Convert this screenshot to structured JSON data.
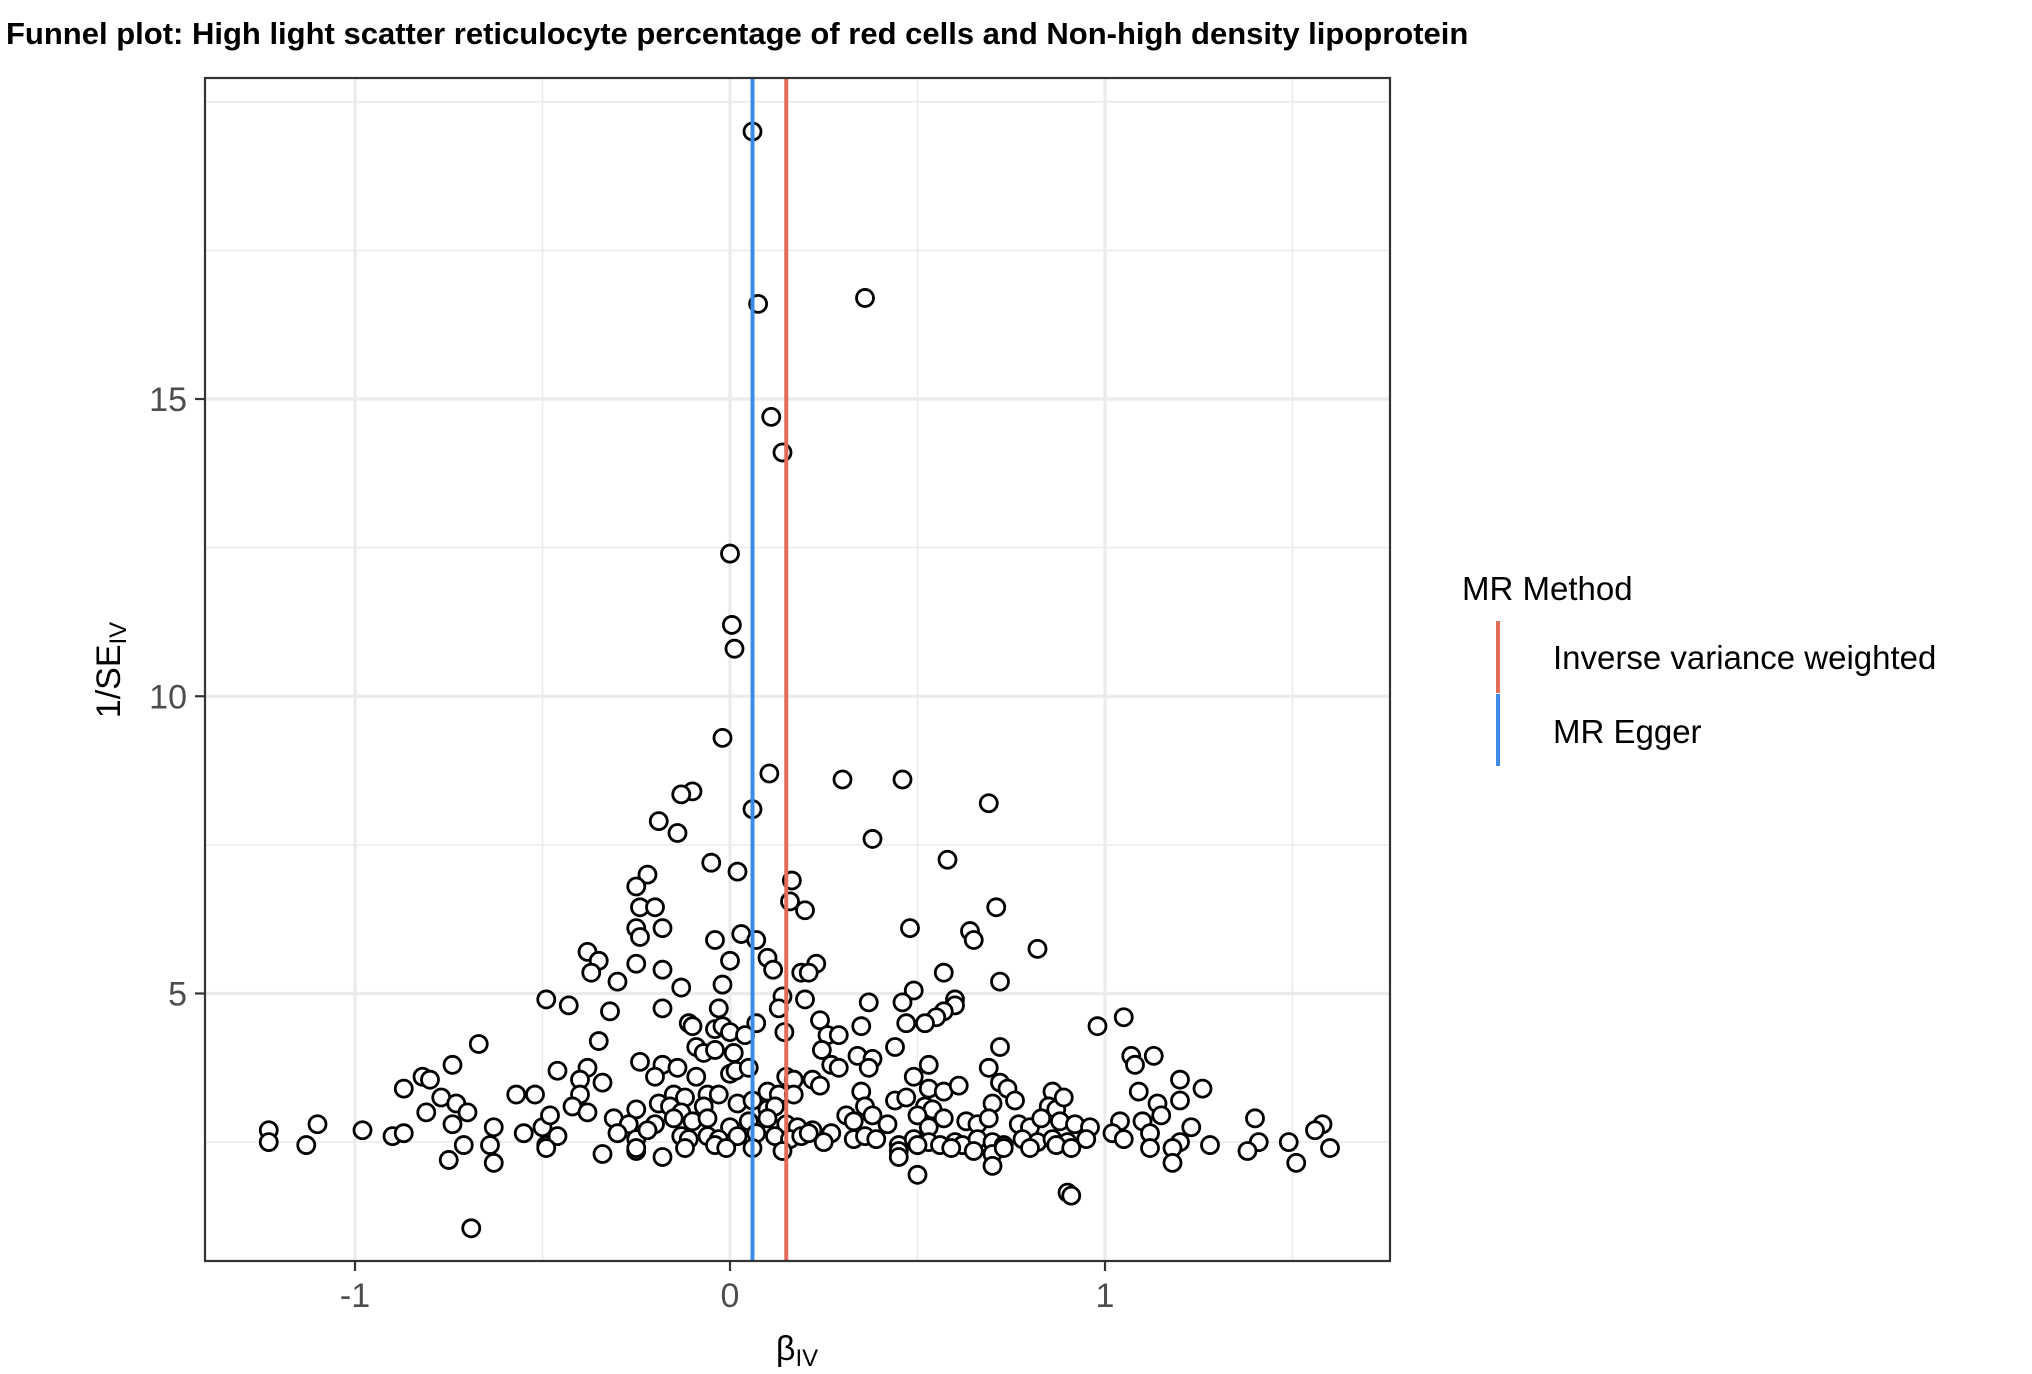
{
  "chart_data": {
    "type": "scatter",
    "title": "Funnel plot: High light scatter reticulocyte percentage of red cells and Non-high density lipoprotein",
    "xlabel": "β",
    "xlabel_sub": "IV",
    "ylabel": "1/SE",
    "ylabel_sub": "IV",
    "xlim": [
      -1.4,
      1.76
    ],
    "ylim": [
      0.5,
      20.4
    ],
    "x_ticks": [
      -1,
      0,
      1
    ],
    "x_tick_labels": [
      "-1",
      "0",
      "1"
    ],
    "y_ticks": [
      5,
      10,
      15
    ],
    "y_tick_labels": [
      "5",
      "10",
      "15"
    ],
    "grid": true,
    "legend": {
      "title": "MR Method",
      "position": "right",
      "entries": [
        {
          "label": "Inverse variance weighted",
          "color": "#E06C5C"
        },
        {
          "label": "MR Egger",
          "color": "#3C8BE6"
        }
      ]
    },
    "lines": [
      {
        "method": "Inverse variance weighted",
        "x": 0.15,
        "color": "#E06C5C"
      },
      {
        "method": "MR Egger",
        "x": 0.06,
        "color": "#3C8BE6"
      }
    ],
    "points": [
      [
        0.06,
        19.5
      ],
      [
        0.36,
        16.7
      ],
      [
        0.075,
        16.6
      ],
      [
        0.11,
        14.7
      ],
      [
        0.14,
        14.1
      ],
      [
        0.0,
        12.4
      ],
      [
        0.005,
        11.2
      ],
      [
        0.012,
        10.8
      ],
      [
        -0.02,
        9.3
      ],
      [
        0.105,
        8.7
      ],
      [
        0.06,
        8.1
      ],
      [
        0.3,
        8.6
      ],
      [
        0.46,
        8.6
      ],
      [
        0.69,
        8.2
      ],
      [
        -0.1,
        8.4
      ],
      [
        -0.13,
        8.35
      ],
      [
        -0.19,
        7.9
      ],
      [
        -0.14,
        7.7
      ],
      [
        0.38,
        7.6
      ],
      [
        0.58,
        7.25
      ],
      [
        -0.05,
        7.2
      ],
      [
        0.02,
        7.05
      ],
      [
        -0.22,
        7.0
      ],
      [
        -0.25,
        6.8
      ],
      [
        0.165,
        6.9
      ],
      [
        0.16,
        6.55
      ],
      [
        0.2,
        6.4
      ],
      [
        0.71,
        6.45
      ],
      [
        -0.24,
        6.45
      ],
      [
        -0.2,
        6.45
      ],
      [
        -0.25,
        6.1
      ],
      [
        -0.24,
        5.95
      ],
      [
        -0.18,
        6.1
      ],
      [
        0.48,
        6.1
      ],
      [
        0.64,
        6.05
      ],
      [
        0.65,
        5.9
      ],
      [
        0.82,
        5.75
      ],
      [
        0.03,
        6.0
      ],
      [
        0.07,
        5.9
      ],
      [
        -0.04,
        5.9
      ],
      [
        -0.38,
        5.7
      ],
      [
        -0.35,
        5.55
      ],
      [
        -0.37,
        5.35
      ],
      [
        0.1,
        5.6
      ],
      [
        0.0,
        5.55
      ],
      [
        0.23,
        5.5
      ],
      [
        0.115,
        5.4
      ],
      [
        0.19,
        5.35
      ],
      [
        0.21,
        5.35
      ],
      [
        -0.25,
        5.5
      ],
      [
        -0.18,
        5.4
      ],
      [
        -0.3,
        5.2
      ],
      [
        0.57,
        5.35
      ],
      [
        0.72,
        5.2
      ],
      [
        -0.02,
        5.15
      ],
      [
        -0.13,
        5.1
      ],
      [
        0.49,
        5.05
      ],
      [
        0.14,
        4.95
      ],
      [
        0.2,
        4.9
      ],
      [
        0.37,
        4.85
      ],
      [
        0.46,
        4.85
      ],
      [
        0.6,
        4.9
      ],
      [
        0.6,
        4.8
      ],
      [
        -0.49,
        4.9
      ],
      [
        -0.43,
        4.8
      ],
      [
        -0.32,
        4.7
      ],
      [
        -0.18,
        4.75
      ],
      [
        -0.03,
        4.75
      ],
      [
        0.13,
        4.75
      ],
      [
        0.57,
        4.7
      ],
      [
        0.55,
        4.6
      ],
      [
        0.24,
        4.55
      ],
      [
        0.35,
        4.45
      ],
      [
        -0.11,
        4.5
      ],
      [
        -0.1,
        4.45
      ],
      [
        -0.04,
        4.4
      ],
      [
        -0.02,
        4.45
      ],
      [
        0.07,
        4.5
      ],
      [
        0.145,
        4.35
      ],
      [
        0.0,
        4.35
      ],
      [
        0.04,
        4.3
      ],
      [
        0.26,
        4.3
      ],
      [
        0.29,
        4.3
      ],
      [
        0.47,
        4.5
      ],
      [
        0.52,
        4.5
      ],
      [
        0.98,
        4.45
      ],
      [
        1.05,
        4.6
      ],
      [
        -0.35,
        4.2
      ],
      [
        -0.67,
        4.15
      ],
      [
        -0.09,
        4.1
      ],
      [
        -0.07,
        4.0
      ],
      [
        -0.04,
        4.05
      ],
      [
        0.01,
        4.0
      ],
      [
        0.245,
        4.05
      ],
      [
        0.34,
        3.95
      ],
      [
        0.38,
        3.9
      ],
      [
        0.44,
        4.1
      ],
      [
        0.72,
        4.1
      ],
      [
        1.07,
        3.95
      ],
      [
        1.13,
        3.95
      ],
      [
        -0.74,
        3.8
      ],
      [
        -0.38,
        3.75
      ],
      [
        -0.46,
        3.7
      ],
      [
        -0.24,
        3.85
      ],
      [
        -0.18,
        3.8
      ],
      [
        -0.14,
        3.75
      ],
      [
        -0.2,
        3.6
      ],
      [
        -0.09,
        3.6
      ],
      [
        0.0,
        3.65
      ],
      [
        0.015,
        3.7
      ],
      [
        0.05,
        3.75
      ],
      [
        0.15,
        3.6
      ],
      [
        0.17,
        3.55
      ],
      [
        0.22,
        3.55
      ],
      [
        0.24,
        3.45
      ],
      [
        0.27,
        3.8
      ],
      [
        0.29,
        3.75
      ],
      [
        0.37,
        3.75
      ],
      [
        0.49,
        3.6
      ],
      [
        0.53,
        3.8
      ],
      [
        0.69,
        3.75
      ],
      [
        1.08,
        3.8
      ],
      [
        -0.82,
        3.6
      ],
      [
        -0.8,
        3.55
      ],
      [
        -0.4,
        3.55
      ],
      [
        -0.34,
        3.5
      ],
      [
        -0.57,
        3.3
      ],
      [
        -0.52,
        3.3
      ],
      [
        -0.77,
        3.25
      ],
      [
        -0.87,
        3.4
      ],
      [
        -0.4,
        3.3
      ],
      [
        -0.15,
        3.3
      ],
      [
        -0.12,
        3.25
      ],
      [
        -0.06,
        3.3
      ],
      [
        -0.03,
        3.3
      ],
      [
        0.1,
        3.35
      ],
      [
        0.13,
        3.3
      ],
      [
        0.17,
        3.3
      ],
      [
        0.35,
        3.35
      ],
      [
        0.53,
        3.4
      ],
      [
        0.57,
        3.35
      ],
      [
        0.61,
        3.45
      ],
      [
        0.72,
        3.5
      ],
      [
        0.74,
        3.4
      ],
      [
        0.86,
        3.35
      ],
      [
        1.09,
        3.35
      ],
      [
        1.2,
        3.55
      ],
      [
        1.26,
        3.4
      ],
      [
        -0.73,
        3.15
      ],
      [
        -0.7,
        3.0
      ],
      [
        -0.81,
        3.0
      ],
      [
        -0.42,
        3.1
      ],
      [
        -0.38,
        3.0
      ],
      [
        -0.25,
        3.05
      ],
      [
        -0.19,
        3.15
      ],
      [
        -0.16,
        3.1
      ],
      [
        -0.13,
        3.0
      ],
      [
        -0.07,
        3.1
      ],
      [
        0.02,
        3.15
      ],
      [
        0.06,
        3.2
      ],
      [
        0.1,
        3.05
      ],
      [
        0.12,
        3.1
      ],
      [
        0.36,
        3.1
      ],
      [
        0.44,
        3.2
      ],
      [
        0.47,
        3.25
      ],
      [
        0.52,
        3.1
      ],
      [
        0.54,
        3.05
      ],
      [
        0.7,
        3.15
      ],
      [
        0.76,
        3.2
      ],
      [
        0.85,
        3.1
      ],
      [
        0.87,
        3.05
      ],
      [
        0.89,
        3.25
      ],
      [
        1.14,
        3.15
      ],
      [
        1.2,
        3.2
      ],
      [
        -0.74,
        2.8
      ],
      [
        -0.5,
        2.75
      ],
      [
        -0.48,
        2.95
      ],
      [
        -0.31,
        2.9
      ],
      [
        -0.27,
        2.8
      ],
      [
        -0.2,
        2.8
      ],
      [
        -0.15,
        2.9
      ],
      [
        -0.1,
        2.85
      ],
      [
        -0.06,
        2.9
      ],
      [
        0.0,
        2.75
      ],
      [
        0.05,
        2.85
      ],
      [
        0.1,
        2.9
      ],
      [
        0.15,
        2.8
      ],
      [
        0.18,
        2.75
      ],
      [
        0.22,
        2.7
      ],
      [
        0.31,
        2.95
      ],
      [
        0.33,
        2.85
      ],
      [
        0.38,
        2.95
      ],
      [
        0.42,
        2.8
      ],
      [
        0.5,
        2.95
      ],
      [
        0.53,
        2.75
      ],
      [
        0.57,
        2.9
      ],
      [
        0.63,
        2.85
      ],
      [
        0.66,
        2.8
      ],
      [
        0.69,
        2.9
      ],
      [
        0.77,
        2.8
      ],
      [
        0.8,
        2.75
      ],
      [
        0.83,
        2.9
      ],
      [
        0.88,
        2.85
      ],
      [
        0.92,
        2.8
      ],
      [
        0.96,
        2.75
      ],
      [
        1.04,
        2.85
      ],
      [
        1.1,
        2.85
      ],
      [
        1.15,
        2.95
      ],
      [
        1.23,
        2.75
      ],
      [
        1.4,
        2.9
      ],
      [
        1.58,
        2.8
      ],
      [
        -1.23,
        2.7
      ],
      [
        -1.23,
        2.5
      ],
      [
        -1.13,
        2.45
      ],
      [
        -1.1,
        2.8
      ],
      [
        -0.98,
        2.7
      ],
      [
        -0.9,
        2.6
      ],
      [
        -0.87,
        2.65
      ],
      [
        -0.63,
        2.75
      ],
      [
        -0.55,
        2.65
      ],
      [
        -0.49,
        2.45
      ],
      [
        -0.46,
        2.6
      ],
      [
        -0.3,
        2.65
      ],
      [
        -0.25,
        2.55
      ],
      [
        -0.22,
        2.7
      ],
      [
        -0.13,
        2.6
      ],
      [
        -0.11,
        2.55
      ],
      [
        -0.06,
        2.6
      ],
      [
        -0.03,
        2.55
      ],
      [
        0.02,
        2.6
      ],
      [
        0.07,
        2.65
      ],
      [
        0.12,
        2.6
      ],
      [
        0.16,
        2.55
      ],
      [
        0.19,
        2.6
      ],
      [
        0.21,
        2.65
      ],
      [
        0.27,
        2.65
      ],
      [
        0.33,
        2.55
      ],
      [
        0.36,
        2.6
      ],
      [
        0.39,
        2.55
      ],
      [
        0.45,
        2.45
      ],
      [
        0.49,
        2.55
      ],
      [
        0.53,
        2.5
      ],
      [
        0.56,
        2.45
      ],
      [
        0.6,
        2.5
      ],
      [
        0.62,
        2.45
      ],
      [
        0.66,
        2.55
      ],
      [
        0.7,
        2.5
      ],
      [
        0.73,
        2.45
      ],
      [
        0.78,
        2.55
      ],
      [
        0.82,
        2.5
      ],
      [
        0.86,
        2.55
      ],
      [
        0.9,
        2.5
      ],
      [
        0.95,
        2.55
      ],
      [
        1.02,
        2.65
      ],
      [
        1.05,
        2.55
      ],
      [
        1.12,
        2.65
      ],
      [
        1.2,
        2.5
      ],
      [
        1.28,
        2.45
      ],
      [
        1.41,
        2.5
      ],
      [
        1.49,
        2.5
      ],
      [
        1.56,
        2.7
      ],
      [
        -0.64,
        2.45
      ],
      [
        -0.49,
        2.4
      ],
      [
        -0.34,
        2.3
      ],
      [
        -0.25,
        2.35
      ],
      [
        -0.18,
        2.25
      ],
      [
        -0.12,
        2.4
      ],
      [
        -0.04,
        2.45
      ],
      [
        -0.01,
        2.4
      ],
      [
        0.06,
        2.4
      ],
      [
        0.14,
        2.35
      ],
      [
        0.25,
        2.5
      ],
      [
        0.45,
        2.35
      ],
      [
        0.5,
        2.45
      ],
      [
        0.59,
        2.4
      ],
      [
        0.65,
        2.35
      ],
      [
        0.7,
        2.3
      ],
      [
        0.73,
        2.4
      ],
      [
        0.8,
        2.4
      ],
      [
        0.87,
        2.45
      ],
      [
        0.91,
        2.4
      ],
      [
        1.12,
        2.4
      ],
      [
        1.18,
        2.4
      ],
      [
        1.38,
        2.35
      ],
      [
        1.51,
        2.15
      ],
      [
        1.6,
        2.4
      ],
      [
        -0.75,
        2.2
      ],
      [
        -0.71,
        2.45
      ],
      [
        -0.63,
        2.15
      ],
      [
        -0.25,
        2.4
      ],
      [
        0.45,
        2.25
      ],
      [
        0.7,
        2.1
      ],
      [
        1.18,
        2.15
      ],
      [
        0.5,
        1.95
      ],
      [
        0.9,
        1.65
      ],
      [
        0.91,
        1.6
      ],
      [
        -0.69,
        1.05
      ]
    ]
  }
}
